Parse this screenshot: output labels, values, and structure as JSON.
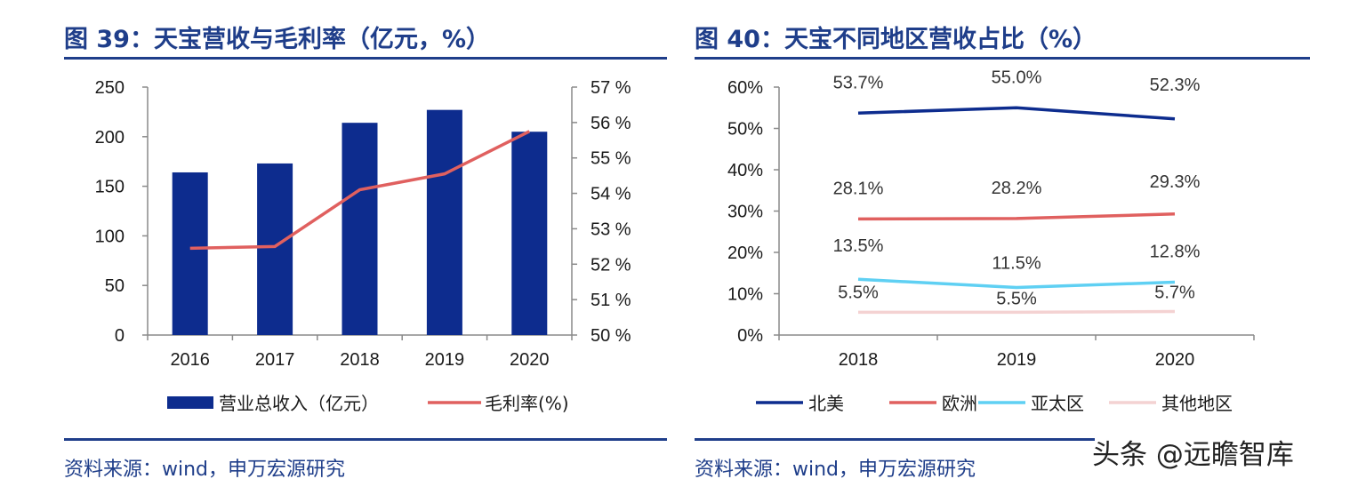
{
  "left_panel": {
    "title": "图 39：天宝营收与毛利率（亿元，%）",
    "source": "资料来源：wind，申万宏源研究"
  },
  "right_panel": {
    "title": "图 40：天宝不同地区营收占比（%）",
    "source": "资料来源：wind，申万宏源研究"
  },
  "watermark": "头条 @远瞻智库",
  "colors": {
    "title": "#1f3e8a",
    "bar": "#0d2c8e",
    "margin_line": "#e0605f",
    "north_america": "#0d2c8e",
    "europe": "#e0605f",
    "asia_pacific": "#5fd0f3",
    "other": "#f4d2d2",
    "axis_text": "#1a1a1a"
  },
  "chart_data": [
    {
      "type": "bar",
      "categories": [
        "2016",
        "2017",
        "2018",
        "2019",
        "2020"
      ],
      "series": [
        {
          "name": "营业总收入（亿元）",
          "type": "bar",
          "axis": "left",
          "values": [
            164,
            173,
            214,
            227,
            205
          ]
        },
        {
          "name": "毛利率(%)",
          "type": "line",
          "axis": "right",
          "values": [
            52.45,
            52.5,
            54.1,
            54.55,
            55.75
          ]
        }
      ],
      "y_left": {
        "lim": [
          0,
          250
        ],
        "ticks": [
          "0",
          "50",
          "100",
          "150",
          "200",
          "250"
        ]
      },
      "y_right": {
        "lim": [
          50,
          57
        ],
        "ticks": [
          "50 %",
          "51 %",
          "52 %",
          "53 %",
          "54 %",
          "55 %",
          "56 %",
          "57 %"
        ]
      },
      "legend": "bottom"
    },
    {
      "type": "line",
      "categories": [
        "2018",
        "2019",
        "2020"
      ],
      "series": [
        {
          "name": "北美",
          "values": [
            53.7,
            55.0,
            52.3
          ],
          "labels": [
            "53.7%",
            "55.0%",
            "52.3%"
          ]
        },
        {
          "name": "欧洲",
          "values": [
            28.1,
            28.2,
            29.3
          ],
          "labels": [
            "28.1%",
            "28.2%",
            "29.3%"
          ]
        },
        {
          "name": "亚太区",
          "values": [
            13.5,
            11.5,
            12.8
          ],
          "labels": [
            "13.5%",
            "11.5%",
            "12.8%"
          ]
        },
        {
          "name": "其他地区",
          "values": [
            5.5,
            5.5,
            5.7
          ],
          "labels": [
            "5.5%",
            "5.5%",
            "5.7%"
          ]
        }
      ],
      "y": {
        "lim": [
          0,
          60
        ],
        "ticks": [
          "0%",
          "10%",
          "20%",
          "30%",
          "40%",
          "50%",
          "60%"
        ]
      },
      "legend": "bottom"
    }
  ]
}
